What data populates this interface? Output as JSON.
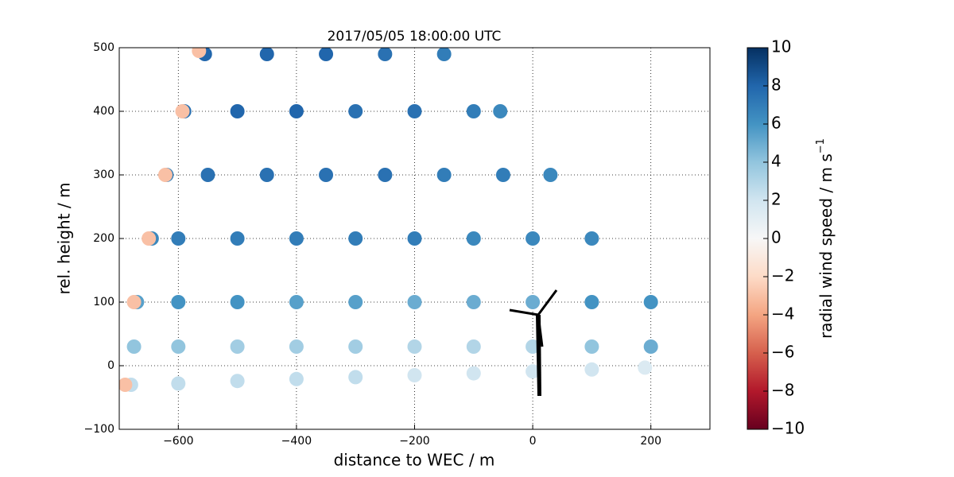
{
  "chart_data": {
    "type": "scatter",
    "title": "2017/05/05 18:00:00 UTC",
    "x_label": "distance to WEC / m",
    "y_label": "rel. height / m",
    "colorbar_label": "radial wind speed / m s",
    "colorbar_label_exponent": "−1",
    "colormap": "RdBu",
    "x": [
      -680,
      -600,
      -500,
      -400,
      -300,
      -200,
      -100,
      0,
      100,
      190,
      -675,
      -600,
      -500,
      -400,
      -300,
      -200,
      -100,
      0,
      100,
      200,
      -670,
      -600,
      -500,
      -400,
      -300,
      -200,
      -100,
      0,
      100,
      200,
      -645,
      -600,
      -500,
      -400,
      -300,
      -200,
      -100,
      0,
      100,
      -620,
      -550,
      -450,
      -350,
      -250,
      -150,
      -50,
      30,
      -590,
      -500,
      -400,
      -300,
      -200,
      -100,
      -55,
      -555,
      -450,
      -350,
      -250,
      -150,
      -690,
      -675,
      -650,
      -622,
      -593,
      -565
    ],
    "y": [
      -30,
      -28,
      -24,
      -21,
      -18,
      -15,
      -12,
      -9,
      -6,
      -3,
      30,
      30,
      30,
      30,
      30,
      30,
      30,
      30,
      30,
      30,
      100,
      100,
      100,
      100,
      100,
      100,
      100,
      100,
      100,
      100,
      200,
      200,
      200,
      200,
      200,
      200,
      200,
      200,
      200,
      300,
      300,
      300,
      300,
      300,
      300,
      300,
      300,
      400,
      400,
      400,
      400,
      400,
      400,
      400,
      490,
      490,
      490,
      490,
      490,
      -30,
      100,
      200,
      300,
      400,
      495
    ],
    "values": [
      2.5,
      2.5,
      2.5,
      2.5,
      2.5,
      2,
      2,
      2,
      2,
      1.5,
      4,
      4,
      3.5,
      3.5,
      3.5,
      3,
      3,
      3,
      4,
      5,
      5.5,
      6,
      6,
      5.5,
      5.5,
      5,
      5,
      5,
      6,
      6,
      6.5,
      7,
      7,
      7,
      7,
      7,
      6.5,
      6.5,
      6.5,
      7,
      7.5,
      7.5,
      7.5,
      7.5,
      7,
      7,
      6.5,
      7.5,
      8,
      8,
      7.5,
      7.5,
      7,
      6.5,
      8,
      8,
      8,
      7.5,
      7,
      -3,
      -3,
      -3,
      -3,
      -3,
      -3
    ],
    "xlim": [
      -700,
      300
    ],
    "xticks": [
      {
        "value": -600,
        "label": "−600"
      },
      {
        "value": -400,
        "label": "−400"
      },
      {
        "value": -200,
        "label": "−200"
      },
      0,
      200
    ],
    "ylim": [
      -100,
      500
    ],
    "yticks": [
      {
        "value": -100,
        "label": "−100"
      },
      0,
      100,
      200,
      300,
      400,
      500
    ],
    "clim": [
      -10,
      10
    ],
    "cticks": [
      {
        "value": -10,
        "label": "−10"
      },
      {
        "value": -8,
        "label": "−8"
      },
      {
        "value": -6,
        "label": "−6"
      },
      {
        "value": -4,
        "label": "−4"
      },
      {
        "value": -2,
        "label": "−2"
      },
      0,
      2,
      4,
      6,
      8,
      10
    ],
    "grid": true
  }
}
